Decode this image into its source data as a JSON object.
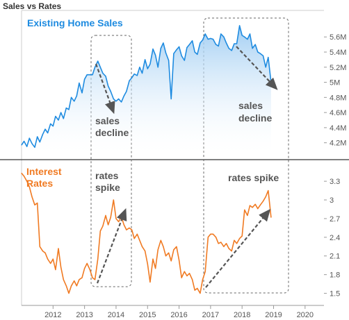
{
  "page": {
    "title": "Sales vs Rates"
  },
  "colors": {
    "sales": "#1e8be0",
    "rates": "#f07a22",
    "annotation": "#555555",
    "divider": "#333333"
  },
  "chart_data": [
    {
      "type": "area",
      "title": "Existing Home Sales",
      "xlabel": "",
      "ylabel": "",
      "ylim": [
        4.05,
        5.85
      ],
      "yticks": [
        4.2,
        4.4,
        4.6,
        4.8,
        5.0,
        5.2,
        5.4,
        5.6
      ],
      "ytick_labels": [
        "4.2M",
        "4.4M",
        "4.6M",
        "4.8M",
        "5M",
        "5.2M",
        "5.4M",
        "5.6M"
      ],
      "series": [
        {
          "x": [
            2011.0,
            2011.08,
            2011.17,
            2011.25,
            2011.33,
            2011.42,
            2011.5,
            2011.58,
            2011.67,
            2011.75,
            2011.83,
            2011.92,
            2012.0,
            2012.08,
            2012.17,
            2012.25,
            2012.33,
            2012.42,
            2012.5,
            2012.58,
            2012.67,
            2012.75,
            2012.83,
            2012.92,
            2013.0,
            2013.08,
            2013.17,
            2013.25,
            2013.33,
            2013.42,
            2013.5,
            2013.58,
            2013.67,
            2013.75,
            2013.83,
            2013.92,
            2014.0,
            2014.08,
            2014.17,
            2014.25,
            2014.33,
            2014.42,
            2014.5,
            2014.58,
            2014.67,
            2014.75,
            2014.83,
            2014.92,
            2015.0,
            2015.08,
            2015.17,
            2015.25,
            2015.33,
            2015.42,
            2015.5,
            2015.58,
            2015.67,
            2015.75,
            2015.83,
            2015.92,
            2016.0,
            2016.08,
            2016.17,
            2016.25,
            2016.33,
            2016.42,
            2016.5,
            2016.58,
            2016.67,
            2016.75,
            2016.83,
            2016.92,
            2017.0,
            2017.08,
            2017.17,
            2017.25,
            2017.33,
            2017.42,
            2017.5,
            2017.58,
            2017.67,
            2017.75,
            2017.83,
            2017.92,
            2018.0,
            2018.08,
            2018.17,
            2018.25,
            2018.33,
            2018.42,
            2018.5,
            2018.58,
            2018.67,
            2018.75,
            2018.83,
            2018.92
          ],
          "values": [
            4.17,
            4.22,
            4.15,
            4.26,
            4.19,
            4.14,
            4.28,
            4.21,
            4.31,
            4.38,
            4.33,
            4.45,
            4.42,
            4.55,
            4.5,
            4.6,
            4.52,
            4.66,
            4.64,
            4.8,
            4.75,
            4.82,
            4.99,
            4.86,
            5.04,
            5.1,
            5.1,
            5.1,
            5.2,
            5.28,
            5.2,
            5.12,
            5.08,
            4.95,
            4.88,
            4.78,
            4.75,
            4.78,
            4.74,
            4.82,
            4.88,
            5.02,
            5.06,
            5.11,
            5.09,
            5.2,
            5.12,
            5.3,
            5.18,
            5.24,
            5.44,
            5.36,
            5.2,
            5.45,
            5.52,
            5.39,
            5.29,
            4.78,
            5.38,
            5.43,
            5.47,
            5.35,
            5.29,
            5.46,
            5.5,
            5.55,
            5.4,
            5.37,
            5.52,
            5.56,
            5.64,
            5.57,
            5.58,
            5.57,
            5.5,
            5.48,
            5.64,
            5.6,
            5.52,
            5.45,
            5.42,
            5.51,
            5.51,
            5.75,
            5.62,
            5.6,
            5.57,
            5.64,
            5.45,
            5.5,
            5.4,
            5.38,
            5.35,
            5.2,
            5.33,
            5.0
          ]
        }
      ]
    },
    {
      "type": "line",
      "title": "Interest Rates",
      "xlabel": "",
      "ylabel": "",
      "ylim": [
        1.35,
        3.58
      ],
      "yticks": [
        1.5,
        1.8,
        2.1,
        2.4,
        2.7,
        3.0,
        3.3
      ],
      "ytick_labels": [
        "1.5",
        "1.8",
        "2.1",
        "2.4",
        "2.7",
        "3",
        "3.3"
      ],
      "xlim": [
        2011.0,
        2020.6
      ],
      "xticks": [
        2012,
        2013,
        2014,
        2015,
        2016,
        2017,
        2018,
        2019,
        2020
      ],
      "xtick_labels": [
        "2012",
        "2013",
        "2014",
        "2015",
        "2016",
        "2017",
        "2018",
        "2019",
        "2020"
      ],
      "series": [
        {
          "x": [
            2011.0,
            2011.08,
            2011.17,
            2011.25,
            2011.33,
            2011.42,
            2011.5,
            2011.58,
            2011.67,
            2011.75,
            2011.83,
            2011.92,
            2012.0,
            2012.08,
            2012.17,
            2012.25,
            2012.33,
            2012.42,
            2012.5,
            2012.58,
            2012.67,
            2012.75,
            2012.83,
            2012.92,
            2013.0,
            2013.08,
            2013.17,
            2013.25,
            2013.33,
            2013.42,
            2013.5,
            2013.58,
            2013.67,
            2013.75,
            2013.83,
            2013.92,
            2014.0,
            2014.08,
            2014.17,
            2014.25,
            2014.33,
            2014.42,
            2014.5,
            2014.58,
            2014.67,
            2014.75,
            2014.83,
            2014.92,
            2015.0,
            2015.08,
            2015.17,
            2015.25,
            2015.33,
            2015.42,
            2015.5,
            2015.58,
            2015.67,
            2015.75,
            2015.83,
            2015.92,
            2016.0,
            2016.08,
            2016.17,
            2016.25,
            2016.33,
            2016.42,
            2016.5,
            2016.58,
            2016.67,
            2016.75,
            2016.83,
            2016.92,
            2017.0,
            2017.08,
            2017.17,
            2017.25,
            2017.33,
            2017.42,
            2017.5,
            2017.58,
            2017.67,
            2017.75,
            2017.83,
            2017.92,
            2018.0,
            2018.08,
            2018.17,
            2018.25,
            2018.33,
            2018.42,
            2018.5,
            2018.58,
            2018.67,
            2018.75,
            2018.83,
            2018.92
          ],
          "values": [
            3.43,
            3.38,
            3.3,
            3.21,
            3.05,
            2.92,
            2.95,
            2.25,
            2.18,
            2.15,
            2.05,
            1.98,
            2.05,
            1.88,
            2.22,
            1.92,
            1.72,
            1.62,
            1.5,
            1.62,
            1.7,
            1.62,
            1.72,
            1.75,
            1.9,
            1.98,
            1.88,
            1.75,
            1.72,
            2.05,
            2.5,
            2.58,
            2.75,
            2.6,
            2.72,
            3.0,
            2.7,
            2.65,
            2.73,
            2.6,
            2.52,
            2.55,
            2.52,
            2.38,
            2.45,
            2.35,
            2.25,
            2.18,
            1.97,
            1.68,
            2.05,
            1.9,
            2.2,
            2.35,
            2.25,
            2.1,
            2.15,
            2.02,
            2.2,
            2.25,
            2.03,
            1.75,
            1.85,
            1.78,
            1.82,
            1.72,
            1.55,
            1.58,
            1.5,
            1.72,
            1.85,
            2.4,
            2.45,
            2.45,
            2.4,
            2.3,
            2.32,
            2.25,
            2.3,
            2.22,
            2.18,
            2.35,
            2.3,
            2.38,
            2.42,
            2.84,
            2.75,
            2.91,
            2.88,
            2.93,
            2.86,
            2.92,
            2.98,
            3.05,
            3.15,
            2.72
          ]
        }
      ]
    }
  ],
  "annotations": {
    "sales_decline_1": [
      "sales",
      "decline"
    ],
    "sales_decline_2": [
      "sales",
      "decline"
    ],
    "rates_spike_1": [
      "rates",
      "spike"
    ],
    "rates_spike_2": "rates spike"
  }
}
